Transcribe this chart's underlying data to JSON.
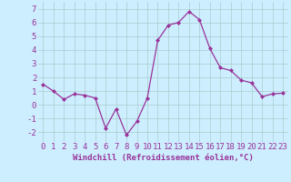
{
  "x": [
    0,
    1,
    2,
    3,
    4,
    5,
    6,
    7,
    8,
    9,
    10,
    11,
    12,
    13,
    14,
    15,
    16,
    17,
    18,
    19,
    20,
    21,
    22,
    23
  ],
  "y": [
    1.5,
    1.0,
    0.4,
    0.8,
    0.7,
    0.5,
    -1.7,
    -0.3,
    -2.2,
    -1.2,
    0.5,
    4.7,
    5.8,
    6.0,
    6.8,
    6.2,
    4.1,
    2.7,
    2.5,
    1.8,
    1.6,
    0.6,
    0.8,
    0.85
  ],
  "line_color": "#993399",
  "marker": "D",
  "marker_size": 2,
  "xlabel": "Windchill (Refroidissement éolien,°C)",
  "xlim": [
    -0.5,
    23.5
  ],
  "ylim": [
    -2.7,
    7.5
  ],
  "yticks": [
    -2,
    -1,
    0,
    1,
    2,
    3,
    4,
    5,
    6,
    7
  ],
  "xticks": [
    0,
    1,
    2,
    3,
    4,
    5,
    6,
    7,
    8,
    9,
    10,
    11,
    12,
    13,
    14,
    15,
    16,
    17,
    18,
    19,
    20,
    21,
    22,
    23
  ],
  "background_color": "#cceeff",
  "grid_color": "#aacccc",
  "tick_color": "#993399",
  "label_color": "#993399",
  "font_size": 6.5
}
